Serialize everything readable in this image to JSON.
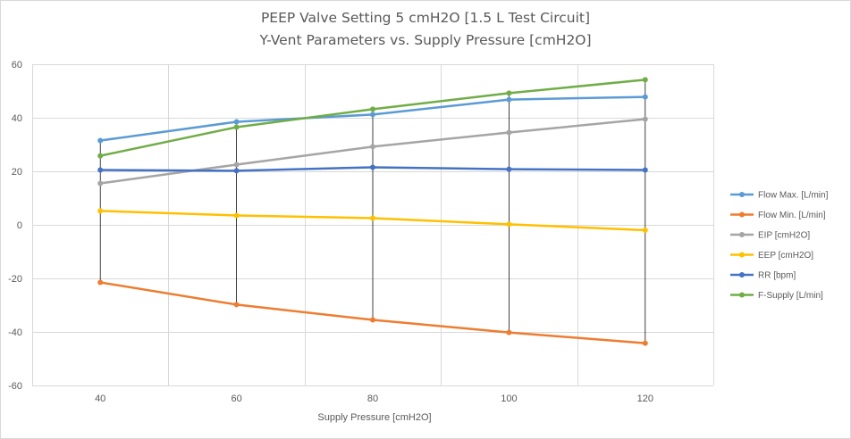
{
  "chart_data": {
    "type": "line",
    "title": "PEEP Valve Setting 5 cmH2O [1.5 L Test Circuit]",
    "subtitle": "Y-Vent Parameters vs. Supply Pressure [cmH2O]",
    "xlabel": "Supply Pressure [cmH2O]",
    "ylabel": "",
    "categories": [
      "40",
      "60",
      "80",
      "100",
      "120"
    ],
    "ylim": [
      -60,
      60
    ],
    "yticks": [
      -60,
      -40,
      -20,
      0,
      20,
      40,
      60
    ],
    "grid": true,
    "high_low_lines": true,
    "legend_position": "right",
    "series": [
      {
        "name": "Flow Max. [L/min]",
        "color": "#5b9bd5",
        "values": [
          31.5,
          38.5,
          41.2,
          46.8,
          47.8
        ]
      },
      {
        "name": "Flow Min. [L/min]",
        "color": "#ed7d31",
        "values": [
          -21.5,
          -29.8,
          -35.5,
          -40.2,
          -44.2
        ]
      },
      {
        "name": "EIP [cmH2O]",
        "color": "#a5a5a5",
        "values": [
          15.5,
          22.5,
          29.2,
          34.5,
          39.5
        ]
      },
      {
        "name": "EEP [cmH2O]",
        "color": "#ffc000",
        "values": [
          5.2,
          3.5,
          2.5,
          0.2,
          -2.0
        ]
      },
      {
        "name": "RR [bpm]",
        "color": "#4472c4",
        "values": [
          20.5,
          20.2,
          21.5,
          20.8,
          20.5
        ]
      },
      {
        "name": "F-Supply [L/min]",
        "color": "#70ad47",
        "values": [
          25.8,
          36.5,
          43.2,
          49.2,
          54.2
        ]
      }
    ]
  }
}
